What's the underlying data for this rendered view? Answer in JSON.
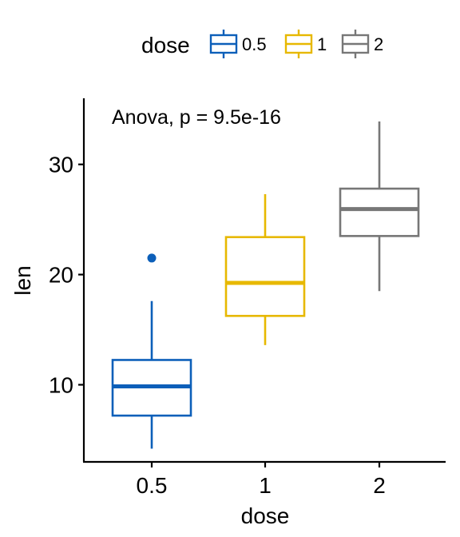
{
  "chart_data": {
    "type": "box",
    "xlabel": "dose",
    "ylabel": "len",
    "categories": [
      "0.5",
      "1",
      "2"
    ],
    "ylim": [
      3,
      36
    ],
    "yticks": [
      10,
      20,
      30
    ],
    "legend": {
      "title": "dose",
      "position": "top"
    },
    "annotation": "Anova, p = 9.5e-16",
    "grid": false,
    "series": [
      {
        "name": "0.5",
        "color": "#0C5FB9",
        "whisker_low": 4.2,
        "q1": 7.2,
        "median": 9.85,
        "q3": 12.25,
        "whisker_high": 17.6,
        "outliers": [
          21.5
        ]
      },
      {
        "name": "1",
        "color": "#E7B800",
        "whisker_low": 13.6,
        "q1": 16.25,
        "median": 19.25,
        "q3": 23.4,
        "whisker_high": 27.3,
        "outliers": []
      },
      {
        "name": "2",
        "color": "#777777",
        "whisker_low": 18.5,
        "q1": 23.5,
        "median": 25.95,
        "q3": 27.8,
        "whisker_high": 33.9,
        "outliers": []
      }
    ]
  }
}
